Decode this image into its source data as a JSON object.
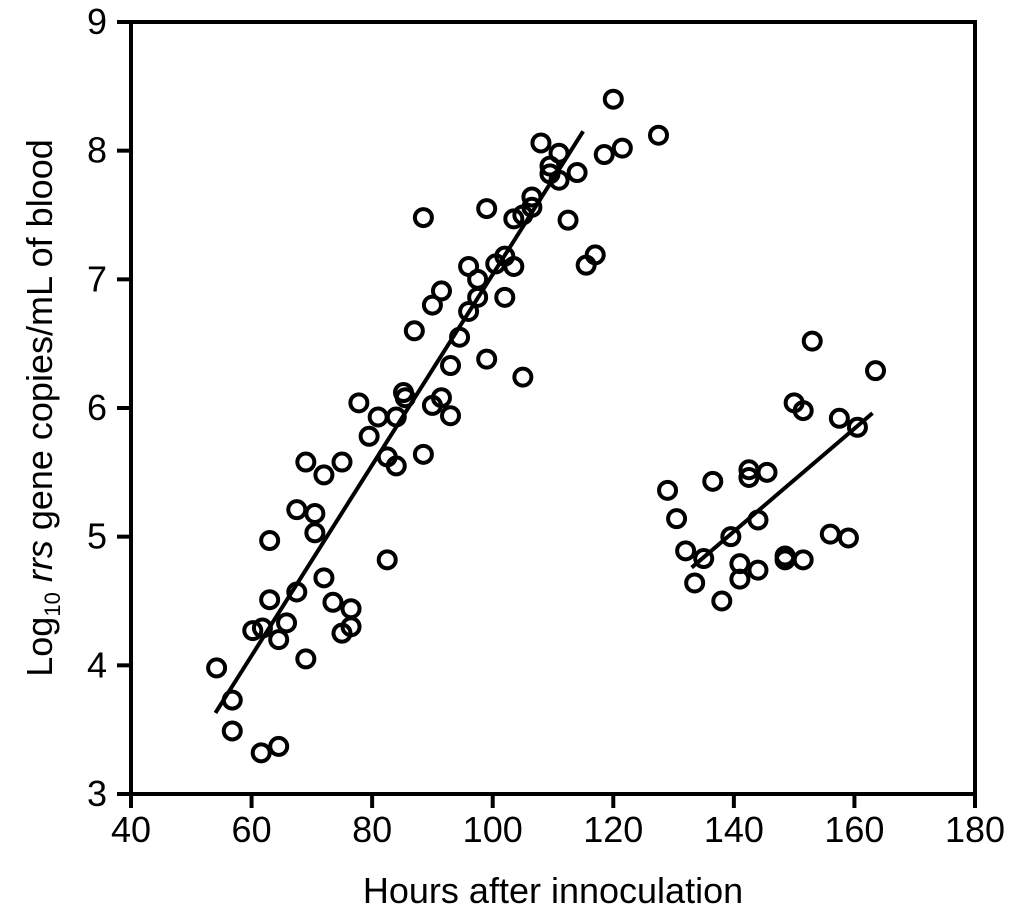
{
  "chart_data": {
    "type": "scatter",
    "title": "",
    "xlabel": "Hours after innoculation",
    "ylabel": {
      "prefix": "Log",
      "subscript": "10",
      "italic": "rrs",
      "suffix": " gene copies/mL of blood"
    },
    "xlim": [
      40,
      180
    ],
    "ylim": [
      3,
      9
    ],
    "xticks": [
      "40",
      "60",
      "80",
      "100",
      "120",
      "140",
      "160",
      "180"
    ],
    "yticks": [
      "3",
      "4",
      "5",
      "6",
      "7",
      "8",
      "9"
    ],
    "grid": false,
    "marker": "open-circle",
    "series": [
      {
        "points": [
          [
            54.2,
            3.98
          ],
          [
            56.8,
            3.73
          ],
          [
            56.8,
            3.49
          ],
          [
            60.2,
            4.27
          ],
          [
            61.6,
            3.32
          ],
          [
            61.8,
            4.29
          ],
          [
            63.0,
            4.51
          ],
          [
            63.0,
            4.97
          ],
          [
            64.5,
            3.37
          ],
          [
            64.5,
            4.2
          ],
          [
            65.8,
            4.33
          ],
          [
            67.5,
            5.21
          ],
          [
            67.5,
            4.57
          ],
          [
            69.0,
            5.58
          ],
          [
            69.0,
            4.05
          ],
          [
            70.5,
            5.18
          ],
          [
            70.5,
            5.03
          ],
          [
            72.0,
            5.48
          ],
          [
            72.0,
            4.68
          ],
          [
            73.5,
            4.49
          ],
          [
            75.0,
            5.58
          ],
          [
            75.0,
            4.25
          ],
          [
            76.5,
            4.44
          ],
          [
            76.5,
            4.3
          ],
          [
            77.8,
            6.04
          ],
          [
            79.5,
            5.78
          ],
          [
            81.0,
            5.93
          ],
          [
            82.5,
            5.62
          ],
          [
            82.5,
            4.82
          ],
          [
            84.0,
            5.93
          ],
          [
            84.0,
            5.55
          ],
          [
            85.2,
            6.12
          ],
          [
            85.5,
            6.08
          ],
          [
            87.0,
            6.6
          ],
          [
            88.5,
            7.48
          ],
          [
            88.5,
            5.64
          ],
          [
            90.0,
            6.8
          ],
          [
            90.0,
            6.02
          ],
          [
            91.5,
            6.91
          ],
          [
            91.5,
            6.08
          ],
          [
            93.0,
            6.33
          ],
          [
            93.0,
            5.94
          ],
          [
            94.5,
            6.55
          ],
          [
            96.0,
            7.1
          ],
          [
            96.0,
            6.75
          ],
          [
            97.5,
            6.86
          ],
          [
            97.5,
            7.0
          ],
          [
            99.0,
            7.55
          ],
          [
            99.0,
            6.38
          ],
          [
            100.5,
            7.12
          ],
          [
            102.0,
            7.18
          ],
          [
            102.0,
            6.86
          ],
          [
            103.5,
            7.47
          ],
          [
            103.5,
            7.1
          ],
          [
            105.0,
            7.5
          ],
          [
            105.0,
            6.24
          ],
          [
            106.5,
            7.56
          ],
          [
            106.5,
            7.64
          ],
          [
            108.0,
            8.06
          ],
          [
            109.5,
            7.82
          ],
          [
            109.5,
            7.88
          ],
          [
            111.0,
            7.98
          ],
          [
            111.0,
            7.77
          ],
          [
            112.5,
            7.46
          ],
          [
            114.0,
            7.83
          ],
          [
            115.5,
            7.11
          ],
          [
            117.0,
            7.19
          ],
          [
            118.5,
            7.97
          ],
          [
            120.0,
            8.4
          ],
          [
            121.5,
            8.02
          ],
          [
            127.5,
            8.12
          ],
          [
            129.0,
            5.36
          ],
          [
            130.5,
            5.14
          ],
          [
            132.0,
            4.89
          ],
          [
            133.5,
            4.64
          ],
          [
            135.0,
            4.83
          ],
          [
            136.5,
            5.43
          ],
          [
            138.0,
            4.5
          ],
          [
            139.5,
            5.0
          ],
          [
            141.0,
            4.79
          ],
          [
            141.0,
            4.67
          ],
          [
            142.5,
            5.52
          ],
          [
            142.5,
            5.46
          ],
          [
            144.0,
            5.13
          ],
          [
            144.0,
            4.74
          ],
          [
            145.5,
            5.5
          ],
          [
            148.5,
            4.85
          ],
          [
            148.5,
            4.82
          ],
          [
            150.0,
            6.04
          ],
          [
            151.5,
            5.98
          ],
          [
            151.5,
            4.82
          ],
          [
            153.0,
            6.52
          ],
          [
            156.0,
            5.02
          ],
          [
            157.5,
            5.92
          ],
          [
            159.0,
            4.99
          ],
          [
            160.5,
            5.85
          ],
          [
            163.5,
            6.29
          ]
        ]
      }
    ],
    "fit_lines": [
      {
        "x": [
          54,
          115
        ],
        "y": [
          3.63,
          8.15
        ]
      },
      {
        "x": [
          133,
          163
        ],
        "y": [
          4.76,
          5.96
        ]
      }
    ]
  }
}
